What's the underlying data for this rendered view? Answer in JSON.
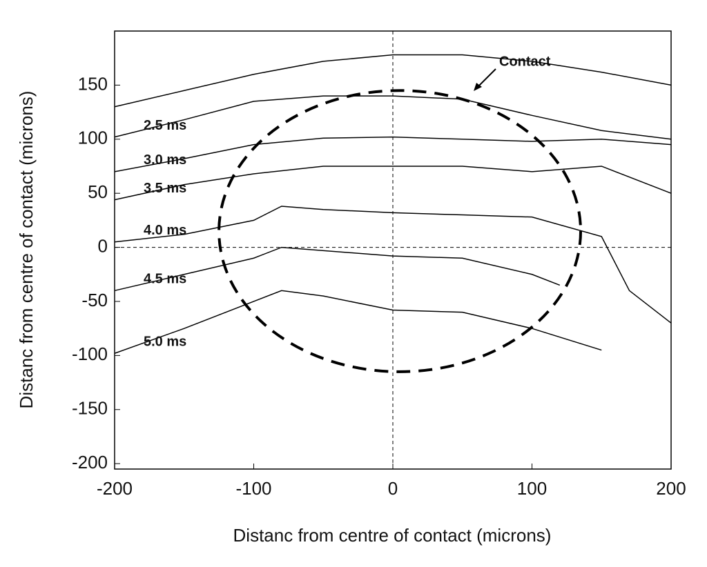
{
  "chart_data": {
    "type": "line",
    "xlabel": "Distanc from centre of contact (microns)",
    "ylabel": "Distanc from centre of contact (microns)",
    "xlim": [
      -200,
      200
    ],
    "ylim": [
      -205,
      200
    ],
    "xticks": [
      -200,
      -100,
      0,
      100,
      200
    ],
    "yticks": [
      -200,
      -150,
      -100,
      -50,
      0,
      50,
      100,
      150
    ],
    "zero_lines": true,
    "annotation": "Contact",
    "contact_circle": {
      "cx": 5,
      "cy": 15,
      "r": 130
    },
    "series": [
      {
        "color": "#000000",
        "x": [
          -200,
          -150,
          -100,
          -50,
          0,
          50,
          100,
          150,
          200
        ],
        "values": [
          130,
          145,
          160,
          172,
          178,
          178,
          172,
          162,
          150
        ]
      },
      {
        "name": "2.5 ms",
        "color": "#000000",
        "x": [
          -200,
          -150,
          -100,
          -50,
          0,
          50,
          100,
          150,
          200
        ],
        "values": [
          102,
          118,
          135,
          140,
          140,
          137,
          122,
          108,
          100
        ]
      },
      {
        "name": "3.0 ms",
        "color": "#000000",
        "x": [
          -200,
          -150,
          -100,
          -50,
          0,
          50,
          100,
          150,
          200
        ],
        "values": [
          70,
          82,
          95,
          101,
          102,
          100,
          98,
          100,
          95
        ]
      },
      {
        "name": "3.5 ms",
        "color": "#000000",
        "x": [
          -200,
          -150,
          -100,
          -50,
          0,
          50,
          100,
          150,
          200
        ],
        "values": [
          44,
          58,
          68,
          75,
          75,
          75,
          70,
          75,
          50
        ]
      },
      {
        "name": "4.0 ms",
        "color": "#000000",
        "x": [
          -200,
          -150,
          -100,
          -80,
          -50,
          0,
          50,
          100,
          150,
          170,
          200
        ],
        "values": [
          5,
          12,
          25,
          38,
          35,
          32,
          30,
          28,
          10,
          -40,
          -70
        ]
      },
      {
        "name": "4.5 ms",
        "color": "#000000",
        "x": [
          -200,
          -150,
          -100,
          -80,
          0,
          50,
          100,
          120
        ],
        "values": [
          -40,
          -25,
          -10,
          0,
          -8,
          -10,
          -25,
          -35
        ]
      },
      {
        "name": "5.0 ms",
        "color": "#000000",
        "x": [
          -200,
          -150,
          -100,
          -80,
          -50,
          0,
          50,
          100,
          150
        ],
        "values": [
          -98,
          -75,
          -50,
          -40,
          -45,
          -58,
          -60,
          -75,
          -95
        ]
      }
    ]
  }
}
